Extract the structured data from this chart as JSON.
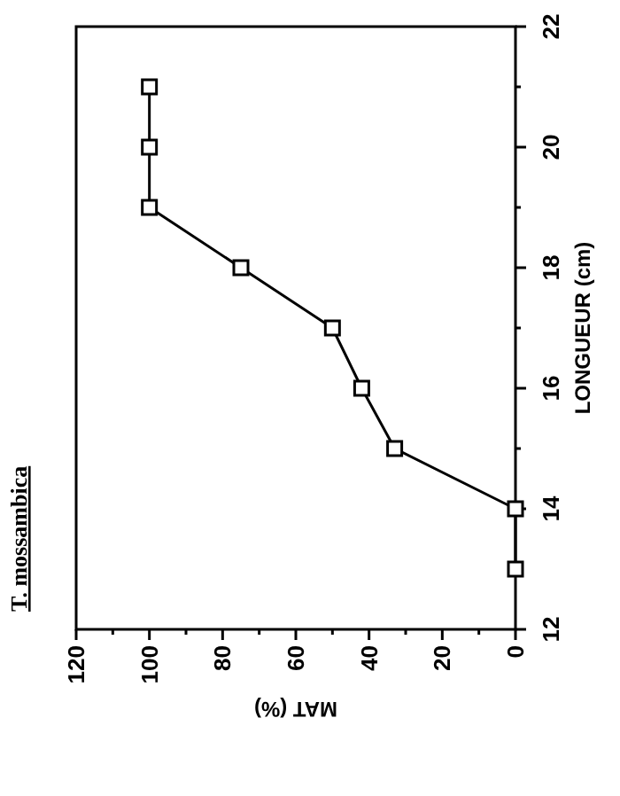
{
  "chart_data": {
    "type": "line",
    "title": "T. mossambica",
    "xlabel": "MAT (%)",
    "ylabel": "LONGUEUR (cm)",
    "x": [
      0,
      0,
      33,
      42,
      50,
      75,
      100,
      100,
      100
    ],
    "series": [
      {
        "color": "#000000",
        "values": [
          13,
          14,
          15,
          16,
          17,
          18,
          19,
          20,
          21
        ]
      }
    ],
    "xlim": [
      120,
      0
    ],
    "xticks": [
      120,
      {
        "value": 110,
        "label": null
      },
      100,
      {
        "value": 90,
        "label": null
      },
      80,
      {
        "value": 70,
        "label": null
      },
      60,
      {
        "value": 50,
        "label": null
      },
      40,
      {
        "value": 30,
        "label": null
      },
      20,
      {
        "value": 10,
        "label": null
      },
      0
    ],
    "ylim": [
      12,
      22
    ],
    "yticks": [
      12,
      {
        "value": 13,
        "label": null
      },
      14,
      {
        "value": 15,
        "label": null
      },
      16,
      {
        "value": 17,
        "label": null
      },
      18,
      {
        "value": 19,
        "label": null
      },
      20,
      {
        "value": 21,
        "label": null
      },
      22
    ],
    "marker": "square",
    "grid": false
  }
}
